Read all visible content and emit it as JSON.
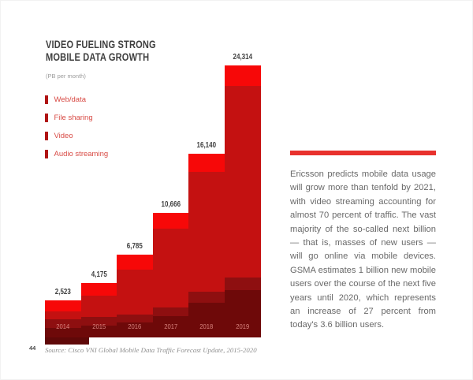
{
  "page": {
    "number": "44",
    "source": "Source: Cisco VNI Global Mobile Data Traffic Forecast Update, 2015-2020"
  },
  "chart": {
    "title_line1": "VIDEO FUELING STRONG",
    "title_line2": "MOBILE DATA GROWTH",
    "subtitle": "(PB per month)",
    "legend": [
      {
        "label": "Web/data"
      },
      {
        "label": "File sharing"
      },
      {
        "label": "Video"
      },
      {
        "label": "Audio streaming"
      }
    ]
  },
  "chart_data": {
    "type": "bar",
    "stacked": true,
    "title": "Video Fueling Strong Mobile Data Growth",
    "unit": "PB per month",
    "categories": [
      "2014",
      "2015",
      "2016",
      "2017",
      "2018",
      "2019"
    ],
    "totals": [
      2523,
      4175,
      6785,
      10666,
      16140,
      24314
    ],
    "total_labels": [
      "2,523",
      "4,175",
      "6,785",
      "10,666",
      "16,140",
      "24,314"
    ],
    "legend_entries": [
      "Web/data",
      "File sharing",
      "Video",
      "Audio streaming"
    ],
    "series": [
      {
        "name": "bottom-darkest-layer",
        "color": "#6e0909",
        "values": [
          630,
          919,
          1221,
          1813,
          3067,
          4206
        ]
      },
      {
        "name": "lower-dark-layer",
        "color": "#8e0f10",
        "values": [
          631,
          668,
          679,
          747,
          968,
          1118
        ]
      },
      {
        "name": "main-medium-layer",
        "color": "#c41111",
        "values": [
          505,
          1587,
          3664,
          6719,
          10491,
          17191
        ]
      },
      {
        "name": "top-bright-layer",
        "color": "#f70808",
        "values": [
          757,
          1001,
          1221,
          1387,
          1614,
          1799
        ]
      }
    ],
    "ylim": [
      0,
      25000
    ],
    "gridlines": false,
    "legend_position": "left"
  },
  "aside": {
    "paragraph": "Ericsson predicts mobile data usage will grow more than tenfold by 2021, with video streaming accounting for almost 70 percent of traffic. The vast majority of the so-called next billion — that is, masses of new users — will go online via mobile devices. GSMA estimates 1 billion new mobile users over the course of the next five years until 2020, which represents an increase of 27 percent from today's 3.6 billion users."
  },
  "colors": {
    "accent_red": "#e8312d",
    "bar_bright": "#f70808",
    "bar_medium": "#c41111",
    "bar_dark": "#8e0f10",
    "bar_darkest": "#6e0909",
    "legend_text": "#d84a44",
    "year_label": "#d8837e",
    "title_text": "#3f3f3f",
    "body_text": "#696969"
  }
}
